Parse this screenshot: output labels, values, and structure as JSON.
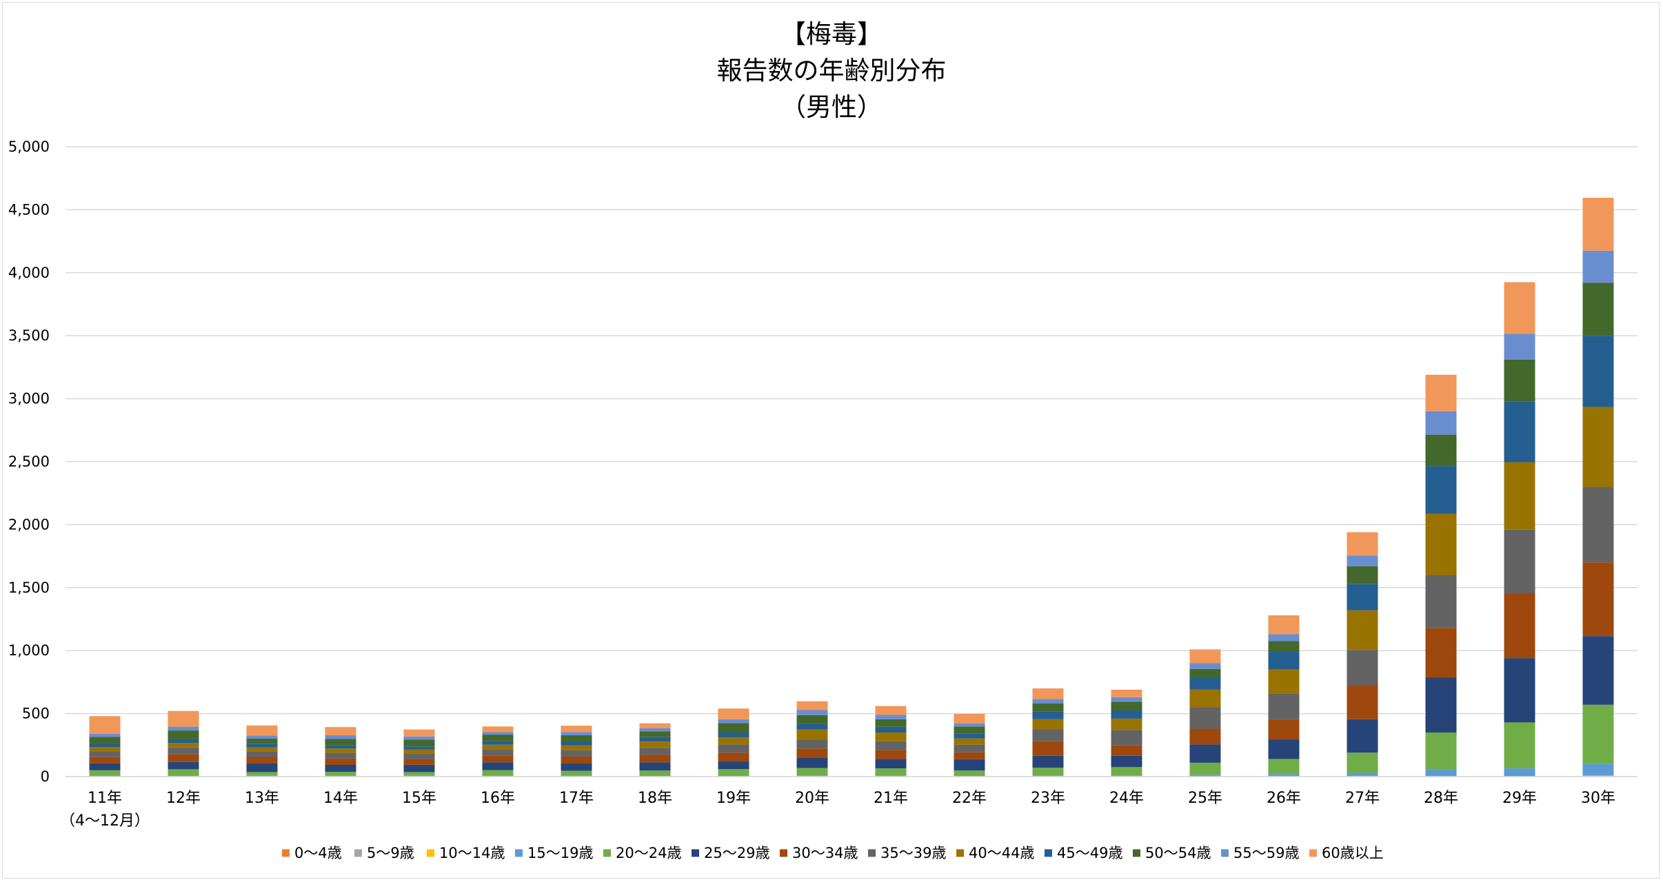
{
  "chart_data": {
    "type": "bar",
    "stacked": true,
    "title_lines": [
      "【梅毒】",
      "報告数の年齢別分布",
      "（男性）"
    ],
    "xlabel": "",
    "ylabel": "",
    "ylim": [
      0,
      5000
    ],
    "yticks": [
      0,
      500,
      1000,
      1500,
      2000,
      2500,
      3000,
      3500,
      4000,
      4500,
      5000
    ],
    "ytick_labels": [
      "0",
      "500",
      "1,000",
      "1,500",
      "2,000",
      "2,500",
      "3,000",
      "3,500",
      "4,000",
      "4,500",
      "5,000"
    ],
    "grid": true,
    "legend_position": "bottom",
    "categories": [
      "11年",
      "12年",
      "13年",
      "14年",
      "15年",
      "16年",
      "17年",
      "18年",
      "19年",
      "20年",
      "21年",
      "22年",
      "23年",
      "24年",
      "25年",
      "26年",
      "27年",
      "28年",
      "29年",
      "30年"
    ],
    "category_sublabels": [
      "（4～12月）",
      "",
      "",
      "",
      "",
      "",
      "",
      "",
      "",
      "",
      "",
      "",
      "",
      "",
      "",
      "",
      "",
      "",
      "",
      ""
    ],
    "series": [
      {
        "name": "0～4歳",
        "color": "#ED7D31",
        "values": [
          0,
          0,
          0,
          0,
          0,
          0,
          0,
          0,
          0,
          0,
          0,
          0,
          0,
          0,
          0,
          0,
          0,
          0,
          0,
          0
        ]
      },
      {
        "name": "5～9歳",
        "color": "#A5A5A5",
        "values": [
          0,
          0,
          0,
          0,
          0,
          0,
          0,
          0,
          0,
          0,
          0,
          0,
          0,
          0,
          0,
          0,
          0,
          0,
          0,
          10
        ]
      },
      {
        "name": "10～14歳",
        "color": "#FFC000",
        "values": [
          0,
          0,
          0,
          0,
          0,
          0,
          0,
          0,
          0,
          0,
          0,
          0,
          0,
          0,
          0,
          0,
          0,
          0,
          0,
          0
        ]
      },
      {
        "name": "15～19歳",
        "color": "#5B9BD5",
        "values": [
          8,
          8,
          6,
          6,
          6,
          6,
          6,
          8,
          8,
          10,
          10,
          8,
          10,
          10,
          15,
          20,
          30,
          55,
          65,
          90
        ]
      },
      {
        "name": "20～24歳",
        "color": "#70AD47",
        "values": [
          42,
          50,
          30,
          32,
          30,
          45,
          40,
          40,
          52,
          58,
          55,
          40,
          60,
          65,
          95,
          120,
          160,
          295,
          365,
          470
        ]
      },
      {
        "name": "25～29歳",
        "color": "#264478",
        "values": [
          55,
          58,
          70,
          55,
          58,
          62,
          58,
          65,
          60,
          80,
          75,
          90,
          95,
          90,
          145,
          155,
          265,
          435,
          510,
          545
        ]
      },
      {
        "name": "30～34歳",
        "color": "#9E480E",
        "values": [
          50,
          60,
          50,
          50,
          45,
          55,
          55,
          60,
          70,
          75,
          70,
          55,
          115,
          85,
          125,
          160,
          270,
          395,
          515,
          585
        ]
      },
      {
        "name": "35～39歳",
        "color": "#636363",
        "values": [
          45,
          55,
          45,
          45,
          45,
          45,
          50,
          55,
          65,
          70,
          70,
          60,
          95,
          120,
          170,
          205,
          280,
          420,
          505,
          600
        ]
      },
      {
        "name": "40～44歳",
        "color": "#997300",
        "values": [
          35,
          35,
          30,
          35,
          30,
          40,
          40,
          50,
          55,
          80,
          70,
          50,
          80,
          90,
          140,
          190,
          315,
          485,
          535,
          635
        ]
      },
      {
        "name": "45～49歳",
        "color": "#255E91",
        "values": [
          25,
          30,
          30,
          25,
          25,
          30,
          30,
          35,
          40,
          45,
          45,
          40,
          60,
          65,
          95,
          140,
          210,
          380,
          485,
          565
        ]
      },
      {
        "name": "50～54歳",
        "color": "#43682B",
        "values": [
          55,
          70,
          40,
          50,
          55,
          50,
          50,
          45,
          75,
          70,
          60,
          55,
          65,
          70,
          70,
          85,
          140,
          250,
          330,
          420
        ]
      },
      {
        "name": "55～59歳",
        "color": "#698ED0",
        "values": [
          25,
          30,
          25,
          30,
          25,
          20,
          25,
          25,
          30,
          40,
          35,
          25,
          35,
          35,
          45,
          55,
          85,
          185,
          205,
          255
        ]
      },
      {
        "name": "60歳以上",
        "color": "#F1975A",
        "values": [
          140,
          125,
          80,
          65,
          55,
          45,
          50,
          40,
          85,
          70,
          70,
          75,
          85,
          60,
          110,
          150,
          185,
          290,
          410,
          420
        ]
      }
    ]
  }
}
